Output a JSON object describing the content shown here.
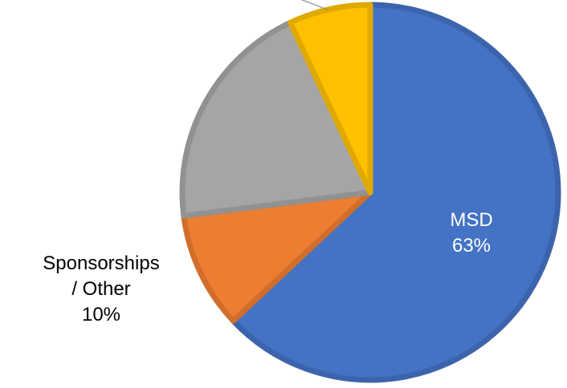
{
  "chart_data": {
    "type": "pie",
    "title": "",
    "slices": [
      {
        "label_lines": [
          "MSD",
          "63%"
        ],
        "value": 63,
        "color": "#4472C4",
        "label_color": "#ffffff"
      },
      {
        "label_lines": [
          "Sponsorships",
          "/ Other",
          "10%"
        ],
        "value": 10,
        "color": "#ED7D31",
        "label_color": "#000000"
      },
      {
        "label_lines": [],
        "value": 20,
        "color": "#A5A5A5",
        "label_color": "#000000"
      },
      {
        "label_lines": [],
        "value": 7,
        "color": "#FFC000",
        "label_color": "#000000"
      }
    ],
    "start_angle_deg": 0,
    "direction": "clockwise"
  }
}
